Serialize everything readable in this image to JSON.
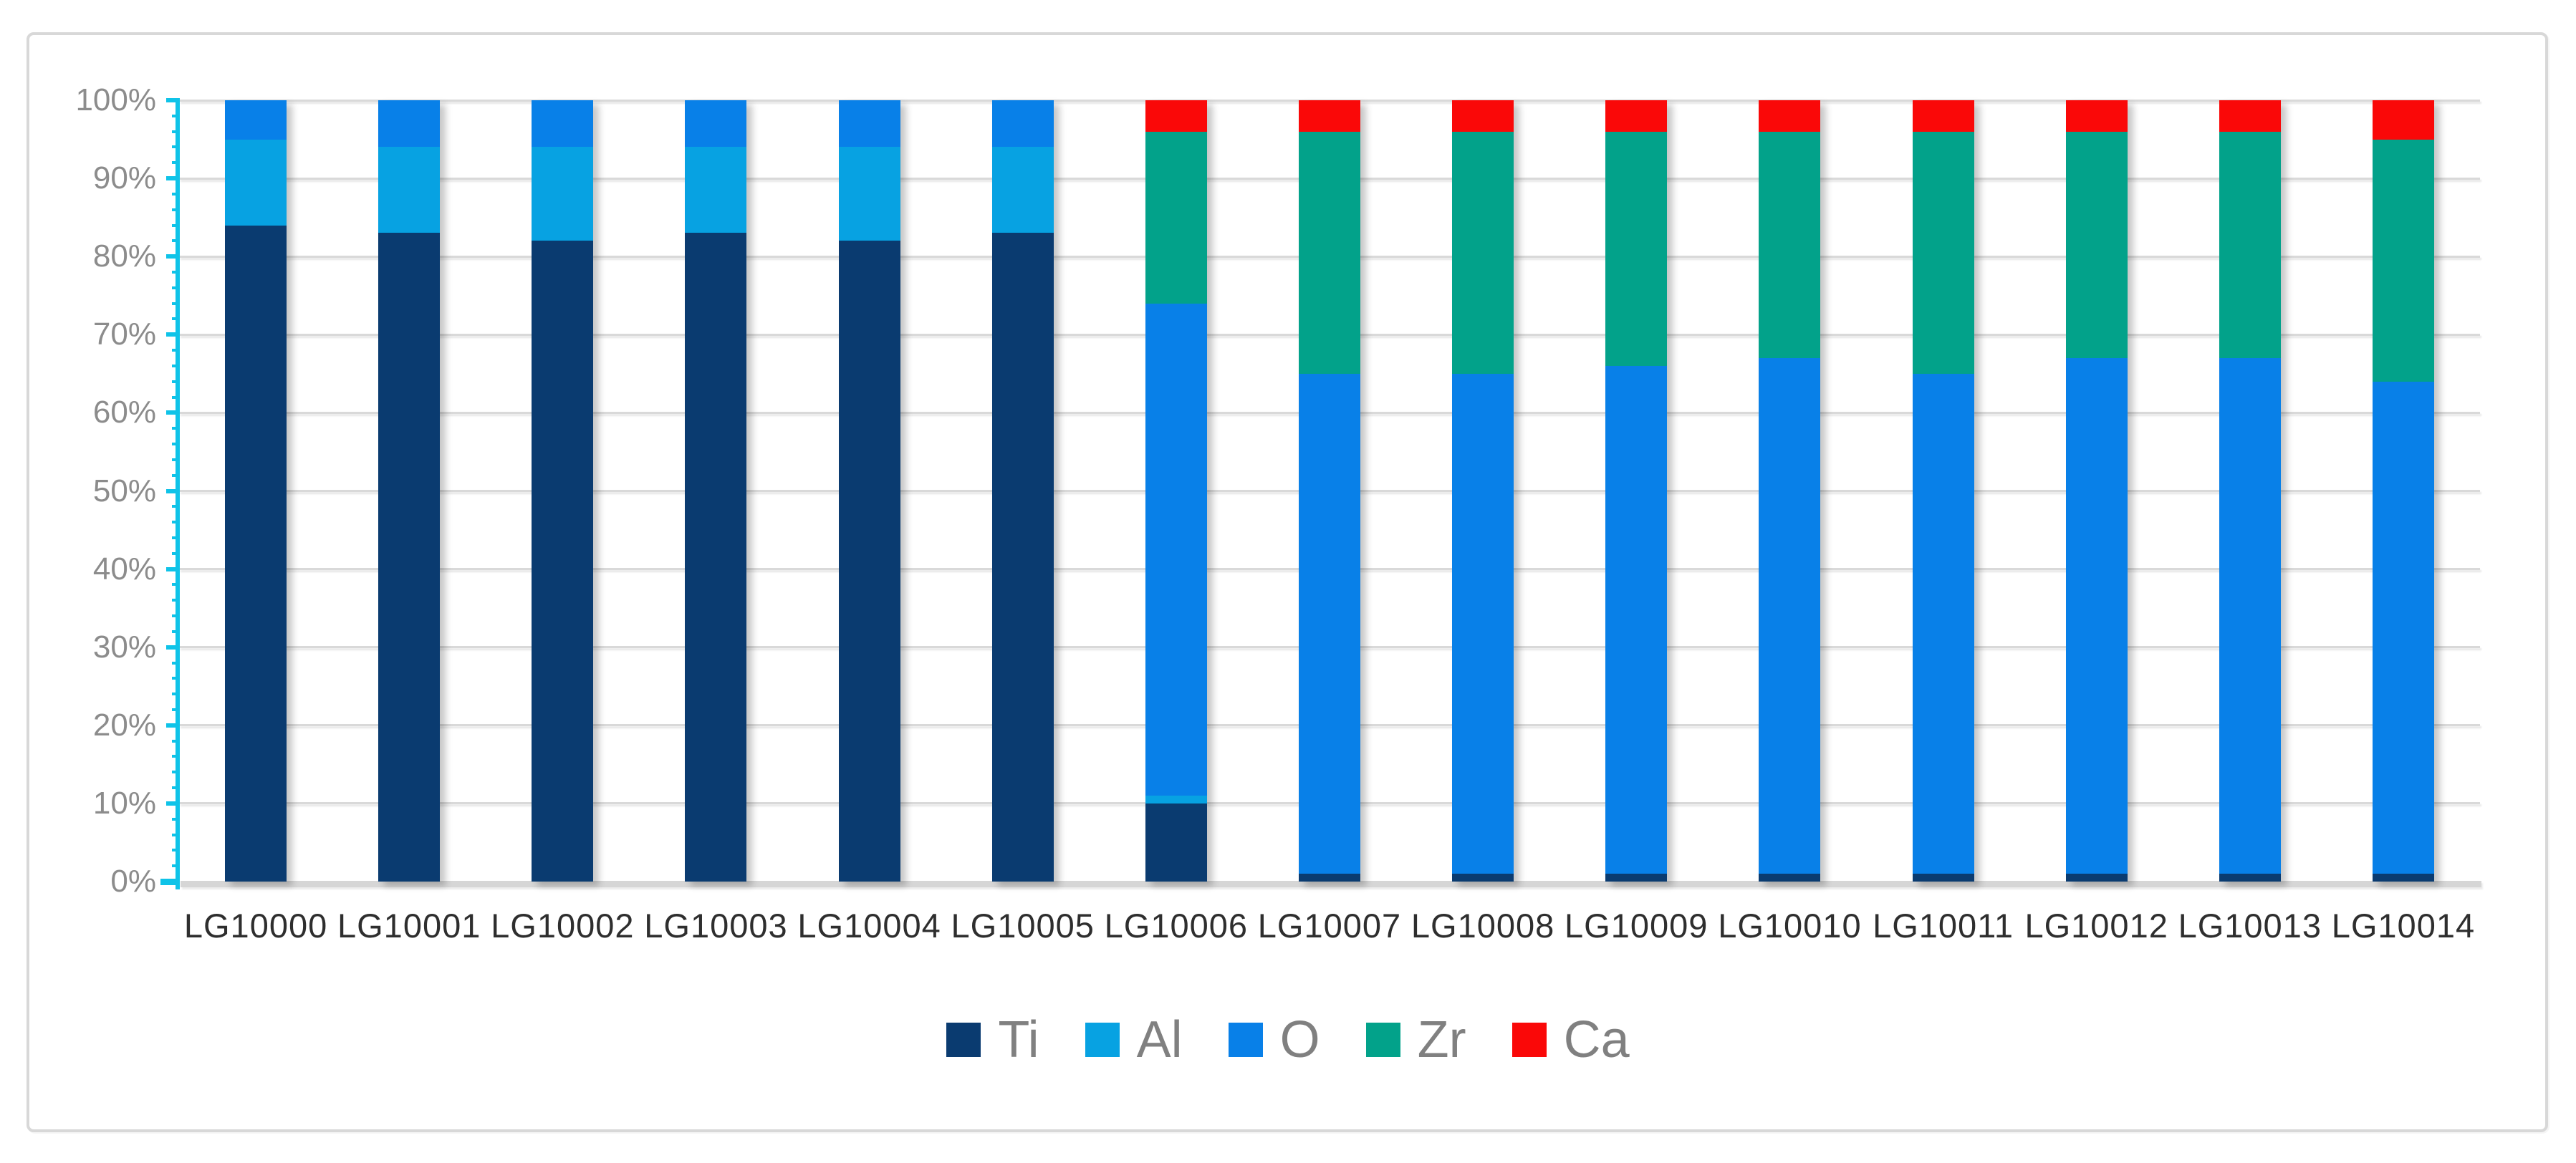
{
  "chart_data": {
    "type": "bar",
    "stacked": true,
    "stacked_mode": "percent",
    "title": "",
    "xlabel": "",
    "ylabel": "",
    "categories": [
      "LG10000",
      "LG10001",
      "LG10002",
      "LG10003",
      "LG10004",
      "LG10005",
      "LG10006",
      "LG10007",
      "LG10008",
      "LG10009",
      "LG10010",
      "LG10011",
      "LG10012",
      "LG10013",
      "LG10014"
    ],
    "series": [
      {
        "name": "Ti",
        "color": "#0A3B70",
        "values": [
          84,
          83,
          82,
          83,
          82,
          83,
          10,
          1,
          1,
          1,
          1,
          1,
          1,
          1,
          1
        ]
      },
      {
        "name": "Al",
        "color": "#07A2E2",
        "values": [
          11,
          11,
          12,
          11,
          12,
          11,
          1,
          0,
          0,
          0,
          0,
          0,
          0,
          0,
          0
        ]
      },
      {
        "name": "O",
        "color": "#0880E8",
        "values": [
          5,
          6,
          6,
          6,
          6,
          6,
          63,
          64,
          64,
          65,
          66,
          64,
          66,
          66,
          63
        ]
      },
      {
        "name": "Zr",
        "color": "#02A28A",
        "values": [
          0,
          0,
          0,
          0,
          0,
          0,
          22,
          31,
          31,
          30,
          29,
          31,
          29,
          29,
          31
        ]
      },
      {
        "name": "Ca",
        "color": "#FA0808",
        "values": [
          0,
          0,
          0,
          0,
          0,
          0,
          4,
          4,
          4,
          4,
          4,
          4,
          4,
          4,
          5
        ]
      }
    ],
    "y_axis": {
      "min": 0,
      "max": 100,
      "major_step": 10,
      "minor_step": 2,
      "tick_labels": [
        "0%",
        "10%",
        "20%",
        "30%",
        "40%",
        "50%",
        "60%",
        "70%",
        "80%",
        "90%",
        "100%"
      ],
      "label_color": "#8C8C8C",
      "axis_color": "#0FC3E8"
    },
    "x_axis": {
      "label_color": "#2E2E2E"
    },
    "grid": {
      "on": true,
      "color": "#D9D9D9",
      "baseline_color": "#D6D6D6"
    },
    "legend": {
      "position": "bottom",
      "entries": [
        "Ti",
        "Al",
        "O",
        "Zr",
        "Ca"
      ],
      "text_color": "#808080"
    },
    "frame": {
      "border_color": "#D8D8D8",
      "background": "#FFFFFF"
    }
  }
}
